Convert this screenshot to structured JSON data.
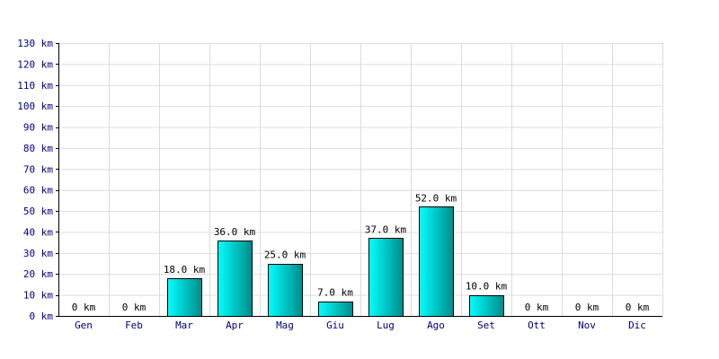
{
  "chart_data": {
    "type": "bar",
    "categories": [
      "Gen",
      "Feb",
      "Mar",
      "Apr",
      "Mag",
      "Giu",
      "Lug",
      "Ago",
      "Set",
      "Ott",
      "Nov",
      "Dic"
    ],
    "values": [
      0,
      0,
      18,
      36,
      25,
      7,
      37,
      52,
      10,
      0,
      0,
      0
    ],
    "value_labels": [
      "0 km",
      "0 km",
      "18.0 km",
      "36.0 km",
      "25.0 km",
      "7.0 km",
      "37.0 km",
      "52.0 km",
      "10.0 km",
      "0 km",
      "0 km",
      "0 km"
    ],
    "y_ticks": [
      0,
      10,
      20,
      30,
      40,
      50,
      60,
      70,
      80,
      90,
      100,
      110,
      120,
      130
    ],
    "y_tick_labels": [
      "0 km",
      "10 km",
      "20 km",
      "30 km",
      "40 km",
      "50 km",
      "60 km",
      "70 km",
      "80 km",
      "90 km",
      "100 km",
      "110 km",
      "120 km",
      "130 km"
    ],
    "ylim": [
      0,
      130
    ],
    "title": "",
    "xlabel": "",
    "ylabel": "",
    "grid": true,
    "colors": {
      "bar_light": "#00ffff",
      "bar_dark": "#008b8b",
      "grid": "#dcdcdc",
      "axis": "#000000",
      "tick_text": "#000080"
    }
  }
}
